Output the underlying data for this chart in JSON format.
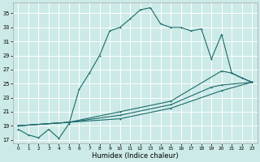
{
  "xlabel": "Humidex (Indice chaleur)",
  "bg_color": "#cceae7",
  "grid_color": "#b0d8d4",
  "line_color": "#1a6b6b",
  "xlim": [
    -0.5,
    23.5
  ],
  "ylim": [
    16.5,
    36.5
  ],
  "xticks": [
    0,
    1,
    2,
    3,
    4,
    5,
    6,
    7,
    8,
    9,
    10,
    11,
    12,
    13,
    14,
    15,
    16,
    17,
    18,
    19,
    20,
    21,
    22,
    23
  ],
  "yticks": [
    17,
    19,
    21,
    23,
    25,
    27,
    29,
    31,
    33,
    35
  ],
  "series1_x": [
    0,
    1,
    2,
    3,
    4,
    5,
    6,
    7,
    8,
    9,
    10,
    11,
    12,
    13,
    14,
    15,
    16,
    17,
    18,
    19,
    20,
    21,
    22,
    23
  ],
  "series1_y": [
    18.5,
    17.7,
    17.3,
    18.5,
    17.2,
    19.3,
    24.2,
    26.5,
    29.0,
    32.5,
    33.0,
    34.2,
    35.5,
    35.8,
    33.5,
    33.0,
    33.0,
    32.5,
    32.8,
    28.5,
    32.0,
    26.5,
    25.8,
    25.2
  ],
  "series2_x": [
    0,
    5,
    10,
    15,
    20,
    21,
    22,
    23
  ],
  "series2_y": [
    19.0,
    19.5,
    21.0,
    22.5,
    26.8,
    26.5,
    25.8,
    25.2
  ],
  "series3_x": [
    0,
    5,
    10,
    15,
    19,
    20,
    23
  ],
  "series3_y": [
    19.0,
    19.5,
    20.5,
    22.0,
    24.5,
    24.8,
    25.2
  ],
  "series4_x": [
    0,
    5,
    10,
    15,
    20,
    23
  ],
  "series4_y": [
    19.0,
    19.5,
    20.0,
    21.5,
    24.0,
    25.2
  ]
}
